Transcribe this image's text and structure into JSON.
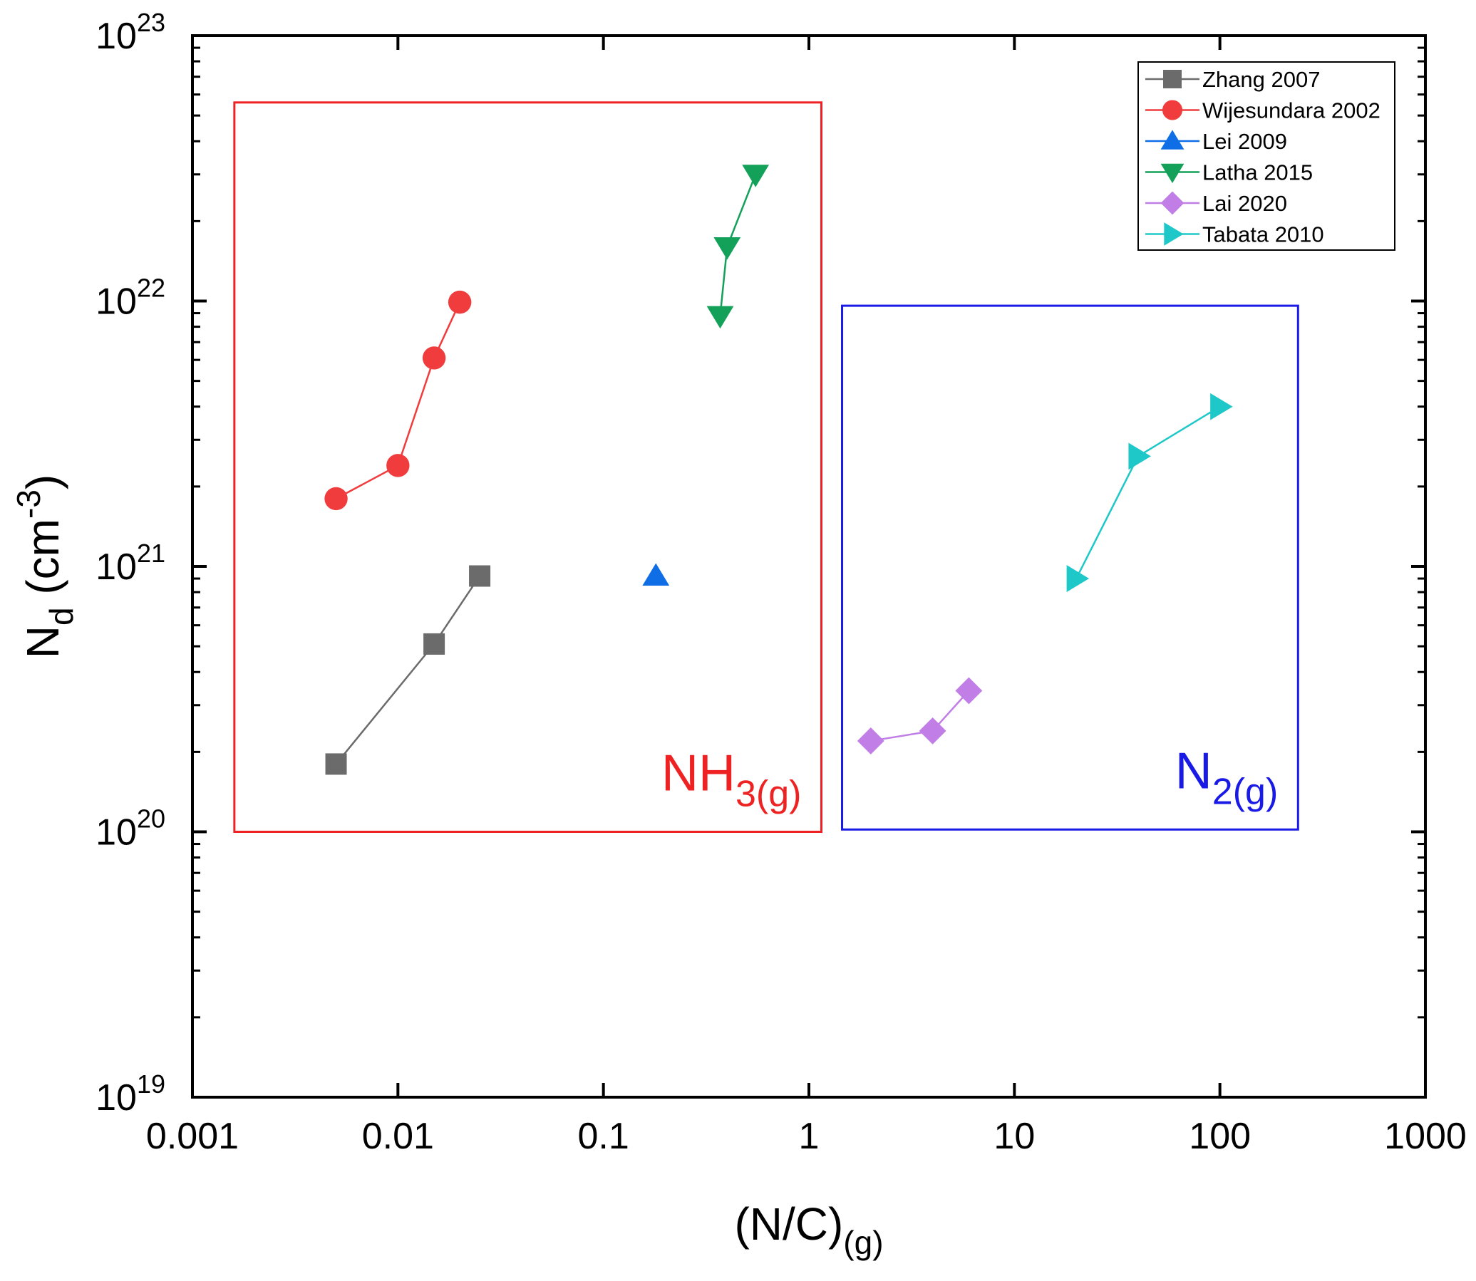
{
  "chart_data": {
    "type": "scatter",
    "xscale": "log",
    "yscale": "log",
    "xlim": [
      0.001,
      1000
    ],
    "ylim": [
      1e+19,
      1e+23
    ],
    "x_ticks": [
      {
        "value": 0.001,
        "label": "0.001"
      },
      {
        "value": 0.01,
        "label": "0.01"
      },
      {
        "value": 0.1,
        "label": "0.1"
      },
      {
        "value": 1,
        "label": "1"
      },
      {
        "value": 10,
        "label": "10"
      },
      {
        "value": 100,
        "label": "100"
      },
      {
        "value": 1000,
        "label": "1000"
      }
    ],
    "y_ticks": [
      {
        "value": 1e+19,
        "base": "10",
        "exp": "19"
      },
      {
        "value": 1e+20,
        "base": "10",
        "exp": "20"
      },
      {
        "value": 1e+21,
        "base": "10",
        "exp": "21"
      },
      {
        "value": 1e+22,
        "base": "10",
        "exp": "22"
      },
      {
        "value": 1e+23,
        "base": "10",
        "exp": "23"
      }
    ],
    "xlabel": {
      "main": "(N/C)",
      "sub": "(g)"
    },
    "ylabel": {
      "main": "N",
      "sub": "d",
      "unit_open": " (cm",
      "unit_exp": "-3",
      "unit_close": ")"
    },
    "series": [
      {
        "name": "Zhang 2007",
        "color": "#6b6b6b",
        "marker": "square",
        "x": [
          0.005,
          0.015,
          0.025
        ],
        "y": [
          1.8e+20,
          5.1e+20,
          9.2e+20
        ]
      },
      {
        "name": "Wijesundara 2002",
        "color": "#f03c3c",
        "marker": "circle",
        "x": [
          0.005,
          0.01,
          0.015,
          0.02
        ],
        "y": [
          1.8e+21,
          2.4e+21,
          6.1e+21,
          9.9e+21
        ]
      },
      {
        "name": "Lei 2009",
        "color": "#0f6ee6",
        "marker": "triangle-up",
        "x": [
          0.18
        ],
        "y": [
          9.2e+20
        ]
      },
      {
        "name": "Latha 2015",
        "color": "#13a15a",
        "marker": "triangle-down",
        "x": [
          0.37,
          0.4,
          0.55
        ],
        "y": [
          8.8e+21,
          1.6e+22,
          3e+22
        ]
      },
      {
        "name": "Lai 2020",
        "color": "#c07ee6",
        "marker": "diamond",
        "x": [
          2,
          4,
          6
        ],
        "y": [
          2.2e+20,
          2.4e+20,
          3.4e+20
        ]
      },
      {
        "name": "Tabata 2010",
        "color": "#1ec8c8",
        "marker": "triangle-right",
        "x": [
          20,
          40,
          100
        ],
        "y": [
          9e+20,
          2.6e+21,
          4e+21
        ]
      }
    ],
    "legend_position": "top-right",
    "regions": [
      {
        "name": "nh3-region",
        "color": "#ee2222",
        "label_main": "NH",
        "label_sub": "3(g)",
        "x_range": [
          0.0016,
          1.15
        ],
        "y_range": [
          1e+20,
          5.6e+22
        ]
      },
      {
        "name": "n2-region",
        "color": "#1a1ae6",
        "label_main": "N",
        "label_sub": "2(g)",
        "x_range": [
          1.45,
          240
        ],
        "y_range": [
          1.02e+20,
          9.6e+21
        ]
      }
    ]
  }
}
